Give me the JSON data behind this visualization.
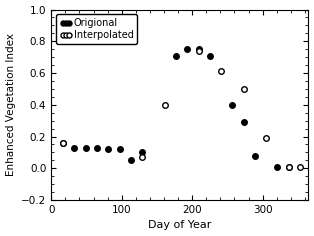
{
  "original_x": [
    17,
    33,
    49,
    65,
    81,
    97,
    113,
    129,
    177,
    193,
    209,
    225,
    257,
    273,
    289,
    321,
    337
  ],
  "original_y": [
    0.16,
    0.13,
    0.13,
    0.13,
    0.12,
    0.12,
    0.05,
    0.1,
    0.71,
    0.75,
    0.75,
    0.71,
    0.4,
    0.29,
    0.08,
    0.01,
    0.01
  ],
  "interpolated_x": [
    17,
    129,
    161,
    209,
    241,
    273,
    305,
    337,
    353
  ],
  "interpolated_y": [
    0.16,
    0.07,
    0.4,
    0.74,
    0.61,
    0.5,
    0.19,
    0.01,
    0.01
  ],
  "xlabel": "Day of Year",
  "ylabel": "Enhanced Vegetation Index",
  "legend_original": "Origional",
  "legend_interpolated": "Interpolated",
  "xlim": [
    0,
    365
  ],
  "ylim": [
    -0.2,
    1.0
  ],
  "xticks": [
    0,
    100,
    200,
    300
  ],
  "yticks": [
    -0.2,
    0.0,
    0.2,
    0.4,
    0.6,
    0.8,
    1.0
  ],
  "background_color": "#ffffff",
  "figwidth": 3.14,
  "figheight": 2.36,
  "dpi": 100
}
